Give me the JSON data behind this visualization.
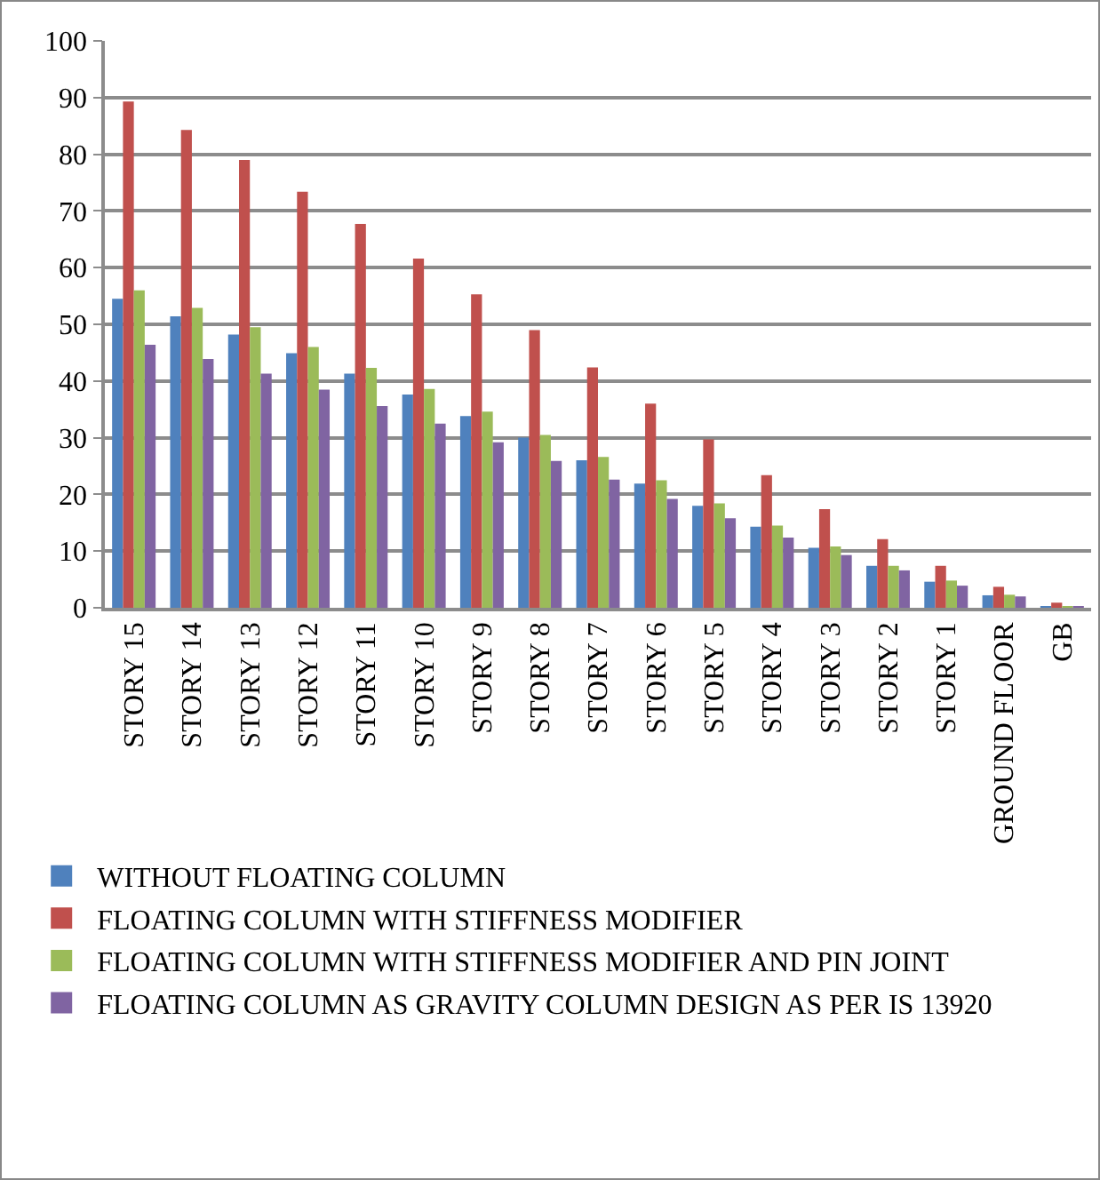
{
  "chart_data": {
    "type": "bar",
    "categories": [
      "STORY 15",
      "STORY 14",
      "STORY 13",
      "STORY 12",
      "STORY 11",
      "STORY 10",
      "STORY 9",
      "STORY 8",
      "STORY 7",
      "STORY 6",
      "STORY 5",
      "STORY 4",
      "STORY 3",
      "STORY 2",
      "STORY 1",
      "GROUND FLOOR",
      "GB"
    ],
    "series": [
      {
        "name": "WITHOUT FLOATING COLUMN",
        "color": "#4f81bd",
        "values": [
          54.5,
          51.4,
          48.2,
          44.9,
          41.3,
          37.6,
          33.8,
          30,
          26,
          21.9,
          18,
          14.3,
          10.6,
          7.4,
          4.6,
          2.2,
          0.2
        ]
      },
      {
        "name": "FLOATING COLUMN WITH STIFFNESS MODIFIER",
        "color": "#c0504d",
        "values": [
          89.3,
          84.3,
          79,
          73.4,
          67.7,
          61.6,
          55.3,
          49,
          42.4,
          36,
          29.7,
          23.4,
          17.4,
          12.1,
          7.4,
          3.7,
          0.9
        ]
      },
      {
        "name": "FLOATING COLUMN WITH STIFFNESS MODIFIER AND PIN JOINT",
        "color": "#9bbb59",
        "values": [
          56,
          52.9,
          49.5,
          46,
          42.3,
          38.6,
          34.6,
          30.5,
          26.6,
          22.5,
          18.4,
          14.5,
          10.8,
          7.4,
          4.8,
          2.3,
          0.3
        ]
      },
      {
        "name": "FLOATING COLUMN AS GRAVITY COLUMN DESIGN AS PER IS 13920",
        "color": "#8064a2",
        "values": [
          46.4,
          43.9,
          41.3,
          38.5,
          35.6,
          32.5,
          29.2,
          25.9,
          22.6,
          19.2,
          15.8,
          12.4,
          9.3,
          6.6,
          3.9,
          2,
          0.3
        ]
      }
    ],
    "ylim": [
      0,
      100
    ],
    "yticks": [
      0,
      10,
      20,
      30,
      40,
      50,
      60,
      70,
      80,
      90,
      100
    ],
    "grid": "y",
    "legend": "bottom"
  }
}
